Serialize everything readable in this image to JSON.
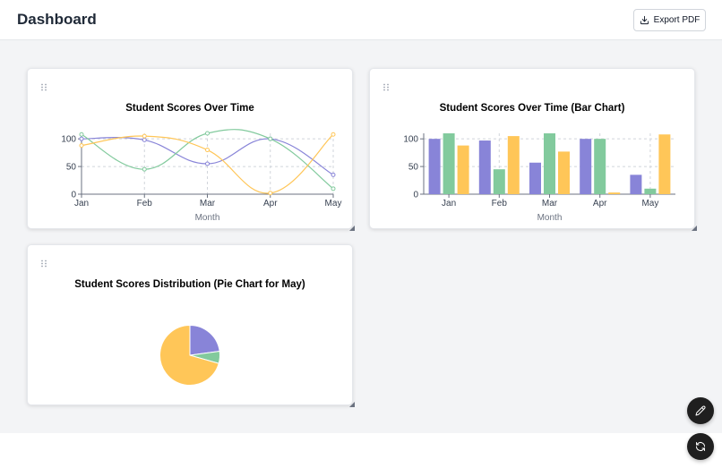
{
  "header": {
    "title": "Dashboard",
    "export_label": "Export PDF"
  },
  "colors": {
    "series_a": "#8884d8",
    "series_b": "#82ca9d",
    "series_c": "#ffc658"
  },
  "chart_data": [
    {
      "type": "line",
      "title": "Student Scores Over Time",
      "xlabel": "Month",
      "ylabel": "",
      "categories": [
        "Jan",
        "Feb",
        "Mar",
        "Apr",
        "May"
      ],
      "ylim": [
        0,
        110
      ],
      "yticks": [
        "0",
        "50",
        "100"
      ],
      "series": [
        {
          "values": [
            100,
            98,
            55,
            100,
            35
          ]
        },
        {
          "values": [
            108,
            45,
            110,
            100,
            10
          ]
        },
        {
          "values": [
            88,
            105,
            80,
            2,
            108
          ]
        }
      ]
    },
    {
      "type": "bar",
      "title": "Student Scores Over Time (Bar Chart)",
      "xlabel": "Month",
      "ylabel": "",
      "categories": [
        "Jan",
        "Feb",
        "Mar",
        "Apr",
        "May"
      ],
      "ylim": [
        0,
        110
      ],
      "yticks": [
        "0",
        "50",
        "100"
      ],
      "series": [
        {
          "values": [
            100,
            97,
            57,
            100,
            35
          ]
        },
        {
          "values": [
            110,
            45,
            110,
            100,
            10
          ]
        },
        {
          "values": [
            88,
            105,
            77,
            3,
            108
          ]
        }
      ]
    },
    {
      "type": "pie",
      "title": "Student Scores Distribution (Pie Chart for May)",
      "slices": [
        {
          "value": 35
        },
        {
          "value": 10
        },
        {
          "value": 108
        }
      ]
    }
  ]
}
